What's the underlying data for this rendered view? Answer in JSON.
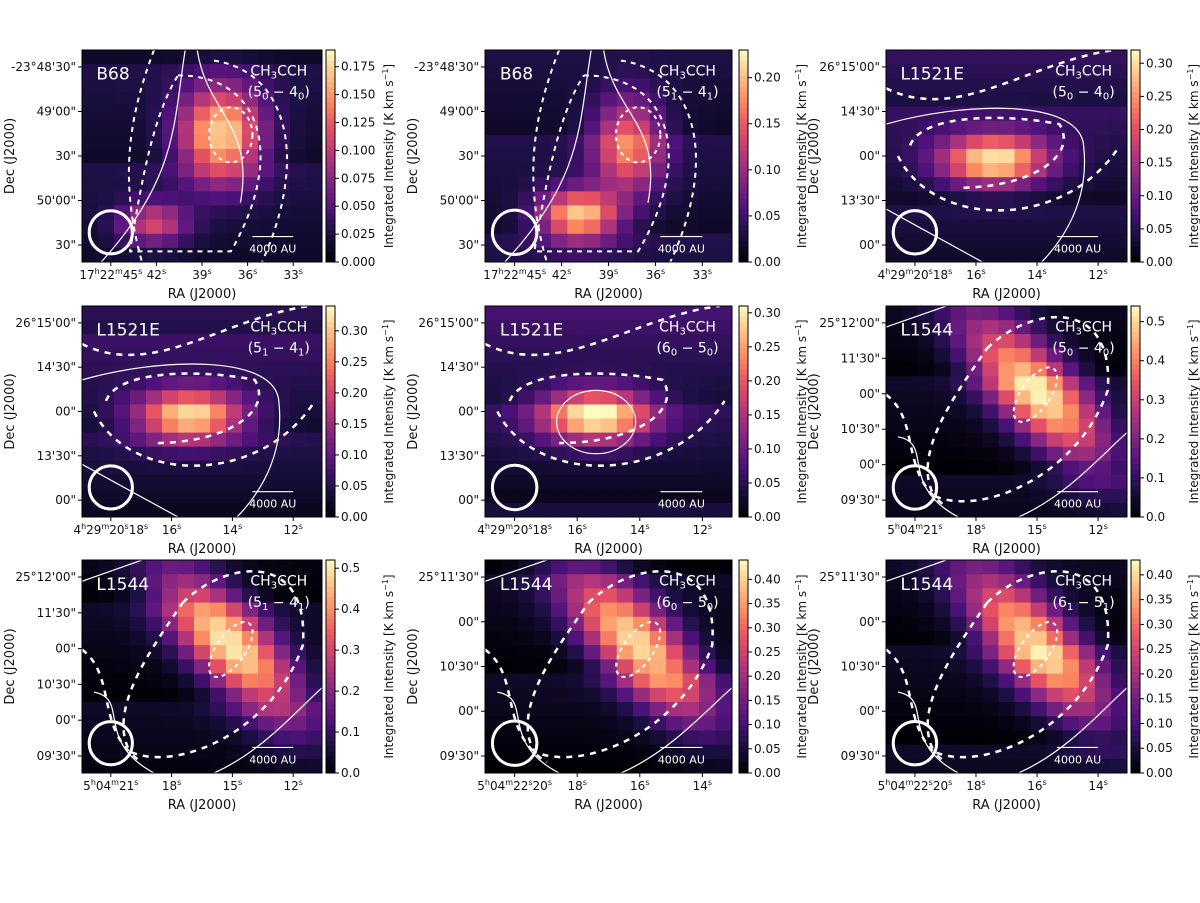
{
  "figure": {
    "colormap": "magma",
    "contour_color": "#ffffff"
  },
  "chart_data": [
    {
      "type": "heatmap",
      "source": "B68",
      "line": {
        "main": "CH",
        "sub1": "3",
        "mid": "CCH",
        "t1": "5",
        "s1": "0",
        "t2": "4",
        "s2": "0"
      },
      "xlabel": "RA (J2000)",
      "ylabel": "Dec (J2000)",
      "colorbar_label": "Integrated Intensity [K km s",
      "colorbar_unit_exp": "−1",
      "colorbar_unit_close": "]",
      "vmin": 0,
      "vmax": 0.19,
      "colorbar_ticks": [
        "0.000",
        "0.025",
        "0.050",
        "0.075",
        "0.100",
        "0.125",
        "0.150",
        "0.175"
      ],
      "xticks": [
        {
          "h": "17",
          "m": "22",
          "s": "45"
        },
        {
          "s": "42"
        },
        {
          "s": "39"
        },
        {
          "s": "36"
        },
        {
          "s": "33"
        }
      ],
      "yticks": [
        "-23°48'30\"",
        "49'00\"",
        "30\"",
        "50'00\"",
        "30\""
      ],
      "scale_bar": "4000 AU",
      "peak": [
        0.62,
        0.42
      ],
      "peak_value": 0.17
    },
    {
      "type": "heatmap",
      "source": "B68",
      "line": {
        "main": "CH",
        "sub1": "3",
        "mid": "CCH",
        "t1": "5",
        "s1": "1",
        "t2": "4",
        "s2": "1"
      },
      "xlabel": "RA (J2000)",
      "ylabel": "Dec (J2000)",
      "colorbar_label": "Integrated Intensity [K km s",
      "colorbar_unit_exp": "−1",
      "colorbar_unit_close": "]",
      "vmin": 0,
      "vmax": 0.23,
      "colorbar_ticks": [
        "0.00",
        "0.05",
        "0.10",
        "0.15",
        "0.20"
      ],
      "xticks": [
        {
          "h": "17",
          "m": "22",
          "s": "45"
        },
        {
          "s": "42"
        },
        {
          "s": "39"
        },
        {
          "s": "36"
        },
        {
          "s": "33"
        }
      ],
      "yticks": [
        "-23°48'30\"",
        "49'00\"",
        "30\"",
        "50'00\"",
        "30\""
      ],
      "scale_bar": "4000 AU",
      "peak": [
        0.4,
        0.8
      ],
      "peak_value": 0.21
    },
    {
      "type": "heatmap",
      "source": "L1521E",
      "line": {
        "main": "CH",
        "sub1": "3",
        "mid": "CCH",
        "t1": "5",
        "s1": "0",
        "t2": "4",
        "s2": "0"
      },
      "xlabel": "RA (J2000)",
      "ylabel": "Dec (J2000)",
      "colorbar_label": "Integrated Intensity [K km s",
      "colorbar_unit_exp": "−1",
      "colorbar_unit_close": "]",
      "vmin": 0,
      "vmax": 0.32,
      "colorbar_ticks": [
        "0.00",
        "0.05",
        "0.10",
        "0.15",
        "0.20",
        "0.25",
        "0.30"
      ],
      "xticks": [
        {
          "h": "4",
          "m": "29",
          "s": "20",
          "s2": "18"
        },
        {
          "s": "16"
        },
        {
          "s": "14"
        },
        {
          "s": "12"
        }
      ],
      "yticks": [
        "26°15'00\"",
        "14'30\"",
        "00\"",
        "13'30\"",
        "00\""
      ],
      "scale_bar": "4000 AU",
      "peak": [
        0.45,
        0.52
      ],
      "peak_value": 0.3
    },
    {
      "type": "heatmap",
      "source": "L1521E",
      "line": {
        "main": "CH",
        "sub1": "3",
        "mid": "CCH",
        "t1": "5",
        "s1": "1",
        "t2": "4",
        "s2": "1"
      },
      "xlabel": "RA (J2000)",
      "ylabel": "Dec (J2000)",
      "colorbar_label": "Integrated Intensity [K km s",
      "colorbar_unit_exp": "−1",
      "colorbar_unit_close": "]",
      "vmin": 0,
      "vmax": 0.34,
      "colorbar_ticks": [
        "0.00",
        "0.05",
        "0.10",
        "0.15",
        "0.20",
        "0.25",
        "0.30"
      ],
      "xticks": [
        {
          "h": "4",
          "m": "29",
          "s": "20",
          "s2": "18"
        },
        {
          "s": "16"
        },
        {
          "s": "14"
        },
        {
          "s": "12"
        }
      ],
      "yticks": [
        "26°15'00\"",
        "14'30\"",
        "00\"",
        "13'30\"",
        "00\""
      ],
      "scale_bar": "4000 AU",
      "peak": [
        0.45,
        0.52
      ],
      "peak_value": 0.32
    },
    {
      "type": "heatmap",
      "source": "L1521E",
      "line": {
        "main": "CH",
        "sub1": "3",
        "mid": "CCH",
        "t1": "6",
        "s1": "0",
        "t2": "5",
        "s2": "0"
      },
      "xlabel": "RA (J2000)",
      "ylabel": "Dec (J2000)",
      "colorbar_label": "Integrated Intensity [K km s",
      "colorbar_unit_exp": "−1",
      "colorbar_unit_close": "]",
      "vmin": 0,
      "vmax": 0.31,
      "colorbar_ticks": [
        "0.00",
        "0.05",
        "0.10",
        "0.15",
        "0.20",
        "0.25",
        "0.30"
      ],
      "xticks": [
        {
          "h": "4",
          "m": "29",
          "s": "20",
          "s2": "18"
        },
        {
          "s": "16"
        },
        {
          "s": "14"
        },
        {
          "s": "12"
        }
      ],
      "yticks": [
        "26°15'00\"",
        "14'30\"",
        "00\"",
        "13'30\"",
        "00\""
      ],
      "scale_bar": "4000 AU",
      "peak": [
        0.45,
        0.52
      ],
      "peak_value": 0.3
    },
    {
      "type": "heatmap",
      "source": "L1544",
      "line": {
        "main": "CH",
        "sub1": "3",
        "mid": "CCH",
        "t1": "5",
        "s1": "0",
        "t2": "4",
        "s2": "0"
      },
      "xlabel": "RA (J2000)",
      "ylabel": "Dec (J2000)",
      "colorbar_label": "Integrated Intensity [K km s",
      "colorbar_unit_exp": "−1",
      "colorbar_unit_close": "]",
      "vmin": 0,
      "vmax": 0.54,
      "colorbar_ticks": [
        "0.0",
        "0.1",
        "0.2",
        "0.3",
        "0.4",
        "0.5"
      ],
      "xticks": [
        {
          "h": "5",
          "m": "04",
          "s": "21"
        },
        {
          "s": "18"
        },
        {
          "s": "15"
        },
        {
          "s": "12"
        }
      ],
      "yticks": [
        "25°12'00\"",
        "11'30\"",
        "00\"",
        "10'30\"",
        "00\"",
        "09'30\""
      ],
      "scale_bar": "4000 AU",
      "peak": [
        0.62,
        0.38
      ],
      "peak_value": 0.52
    },
    {
      "type": "heatmap",
      "source": "L1544",
      "line": {
        "main": "CH",
        "sub1": "3",
        "mid": "CCH",
        "t1": "5",
        "s1": "1",
        "t2": "4",
        "s2": "1"
      },
      "xlabel": "RA (J2000)",
      "ylabel": "Dec (J2000)",
      "colorbar_label": "Integrated Intensity [K km s",
      "colorbar_unit_exp": "−1",
      "colorbar_unit_close": "]",
      "vmin": 0,
      "vmax": 0.52,
      "colorbar_ticks": [
        "0.0",
        "0.1",
        "0.2",
        "0.3",
        "0.4",
        "0.5"
      ],
      "xticks": [
        {
          "h": "5",
          "m": "04",
          "s": "21"
        },
        {
          "s": "18"
        },
        {
          "s": "15"
        },
        {
          "s": "12"
        }
      ],
      "yticks": [
        "25°12'00\"",
        "11'30\"",
        "00\"",
        "10'30\"",
        "00\"",
        "09'30\""
      ],
      "scale_bar": "4000 AU",
      "peak": [
        0.62,
        0.38
      ],
      "peak_value": 0.5
    },
    {
      "type": "heatmap",
      "source": "L1544",
      "line": {
        "main": "CH",
        "sub1": "3",
        "mid": "CCH",
        "t1": "6",
        "s1": "0",
        "t2": "5",
        "s2": "0"
      },
      "xlabel": "RA (J2000)",
      "ylabel": "Dec (J2000)",
      "colorbar_label": "Integrated Intensity [K km s",
      "colorbar_unit_exp": "−1",
      "colorbar_unit_close": "]",
      "vmin": 0,
      "vmax": 0.44,
      "colorbar_ticks": [
        "0.00",
        "0.05",
        "0.10",
        "0.15",
        "0.20",
        "0.25",
        "0.30",
        "0.35",
        "0.40"
      ],
      "xticks": [
        {
          "h": "5",
          "m": "04",
          "s": "22",
          "s2": "20"
        },
        {
          "s": "18"
        },
        {
          "s": "16"
        },
        {
          "s": "14"
        }
      ],
      "yticks": [
        "25°11'30\"",
        "00\"",
        "10'30\"",
        "00\"",
        "09'30\""
      ],
      "scale_bar": "4000 AU",
      "peak": [
        0.62,
        0.38
      ],
      "peak_value": 0.42
    },
    {
      "type": "heatmap",
      "source": "L1544",
      "line": {
        "main": "CH",
        "sub1": "3",
        "mid": "CCH",
        "t1": "6",
        "s1": "1",
        "t2": "5",
        "s2": "1"
      },
      "xlabel": "RA (J2000)",
      "ylabel": "Dec (J2000)",
      "colorbar_label": "Integrated Intensity [K km s",
      "colorbar_unit_exp": "−1",
      "colorbar_unit_close": "]",
      "vmin": 0,
      "vmax": 0.43,
      "colorbar_ticks": [
        "0.00",
        "0.05",
        "0.10",
        "0.15",
        "0.20",
        "0.25",
        "0.30",
        "0.35",
        "0.40"
      ],
      "xticks": [
        {
          "h": "5",
          "m": "04",
          "s": "22",
          "s2": "20"
        },
        {
          "s": "18"
        },
        {
          "s": "16"
        },
        {
          "s": "14"
        }
      ],
      "yticks": [
        "25°11'30\"",
        "00\"",
        "10'30\"",
        "00\"",
        "09'30\""
      ],
      "scale_bar": "4000 AU",
      "peak": [
        0.62,
        0.38
      ],
      "peak_value": 0.41
    }
  ]
}
